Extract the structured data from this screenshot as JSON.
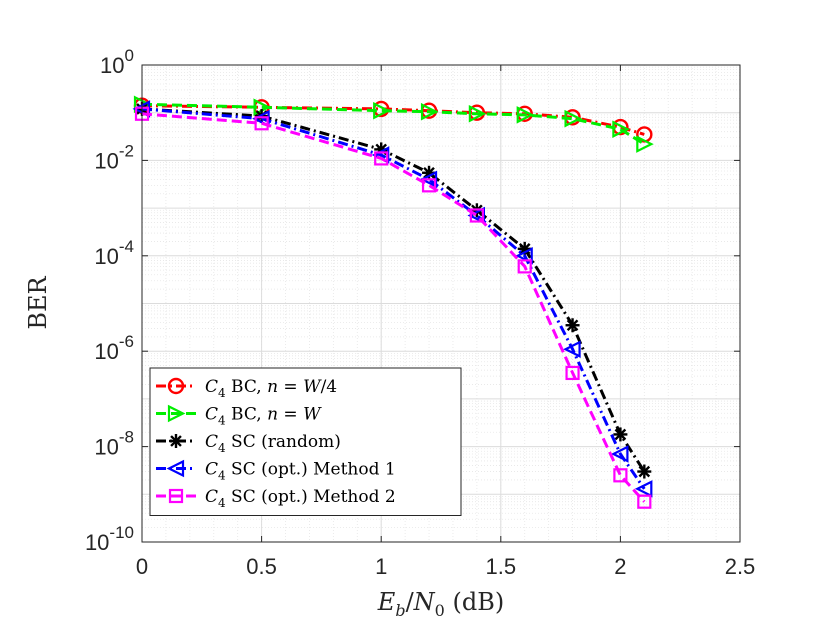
{
  "chart_data": {
    "type": "line",
    "xlabel": "E_b/N_0 (dB)",
    "ylabel": "BER",
    "xlim": [
      0,
      2.5
    ],
    "ylim": [
      1e-10,
      1
    ],
    "yscale": "log",
    "xticks": [
      "0",
      "0.5",
      "1",
      "1.5",
      "2",
      "2.5"
    ],
    "yticks": [
      {
        "base": "10",
        "exp": "0"
      },
      {
        "base": "10",
        "exp": "-2"
      },
      {
        "base": "10",
        "exp": "-4"
      },
      {
        "base": "10",
        "exp": "-6"
      },
      {
        "base": "10",
        "exp": "-8"
      },
      {
        "base": "10",
        "exp": "-10"
      }
    ],
    "grid": true,
    "legend_position": "bottom-left",
    "series": [
      {
        "name": "C4 BC, n = W/4",
        "label_parts": [
          "C",
          "4",
          " BC, ",
          "n",
          " = ",
          "W",
          "/4"
        ],
        "color": "#ff0000",
        "dash": "dashdot",
        "marker": "circle",
        "x": [
          0,
          0.5,
          1.0,
          1.2,
          1.4,
          1.6,
          1.8,
          2.0,
          2.1
        ],
        "y": [
          0.14,
          0.13,
          0.12,
          0.11,
          0.1,
          0.095,
          0.08,
          0.05,
          0.035
        ]
      },
      {
        "name": "C4 BC, n = W",
        "label_parts": [
          "C",
          "4",
          " BC, ",
          "n",
          " = ",
          "W",
          ""
        ],
        "color": "#00ee00",
        "dash": "dashed",
        "marker": "triangle-right",
        "x": [
          0,
          0.5,
          1.0,
          1.2,
          1.4,
          1.6,
          1.8,
          2.0,
          2.1
        ],
        "y": [
          0.15,
          0.13,
          0.11,
          0.105,
          0.095,
          0.09,
          0.075,
          0.045,
          0.022
        ]
      },
      {
        "name": "C4 SC (random)",
        "label_parts": [
          "C",
          "4",
          " SC (random)"
        ],
        "color": "#000000",
        "dash": "dashdot",
        "marker": "asterisk",
        "x": [
          0,
          0.5,
          1.0,
          1.2,
          1.4,
          1.6,
          1.8,
          2.0,
          2.1
        ],
        "y": [
          0.12,
          0.085,
          0.017,
          0.0055,
          0.0009,
          0.00014,
          3.5e-06,
          1.8e-08,
          3e-09
        ]
      },
      {
        "name": "C4 SC (opt.) Method 1",
        "label_parts": [
          "C",
          "4",
          " SC (opt.) Method 1"
        ],
        "color": "#0000ff",
        "dash": "dashdot",
        "marker": "triangle-left",
        "x": [
          0,
          0.5,
          1.0,
          1.2,
          1.4,
          1.6,
          1.8,
          2.0,
          2.1
        ],
        "y": [
          0.12,
          0.075,
          0.013,
          0.004,
          0.0007,
          0.0001,
          1.1e-06,
          7e-09,
          1.3e-09
        ]
      },
      {
        "name": "C4 SC (opt.) Method 2",
        "label_parts": [
          "C",
          "4",
          " SC (opt.) Method 2"
        ],
        "color": "#ff00ff",
        "dash": "dashed",
        "marker": "square",
        "x": [
          0,
          0.5,
          1.0,
          1.2,
          1.4,
          1.6,
          1.8,
          2.0,
          2.1
        ],
        "y": [
          0.095,
          0.06,
          0.011,
          0.003,
          0.0007,
          6e-05,
          3.5e-07,
          2.5e-09,
          7e-10
        ]
      }
    ]
  }
}
